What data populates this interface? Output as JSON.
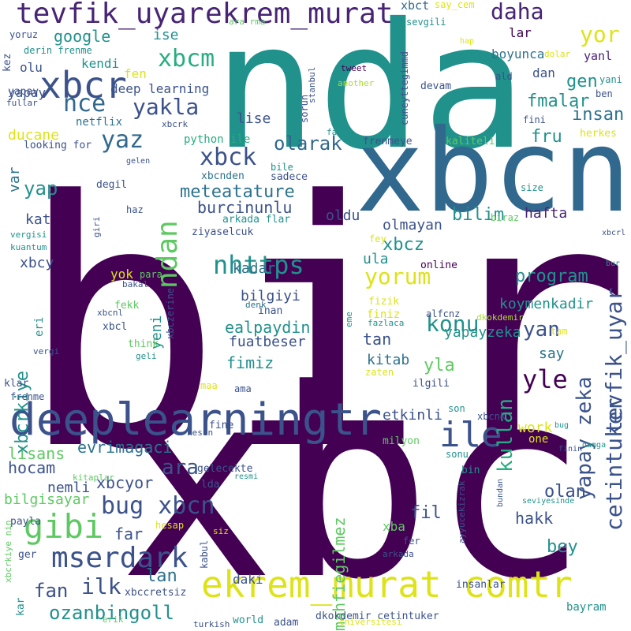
{
  "cloud": {
    "palette": {
      "dark_purple": "#440154",
      "purple": "#482475",
      "indigo": "#3b528b",
      "blue": "#2c728e",
      "teal": "#21918c",
      "green": "#27ad81",
      "light_green": "#5ec962",
      "lime": "#aadc32",
      "yellow": "#dde318"
    },
    "words": [
      {
        "text": "bir",
        "color": "#440154"
      },
      {
        "text": "xbc",
        "color": "#440154"
      },
      {
        "text": "nda",
        "color": "#21918c"
      },
      {
        "text": "xbcn",
        "color": "#31688e"
      },
      {
        "text": "deeplearningtr",
        "color": "#3b528b"
      },
      {
        "text": "ekrem_murat comtr",
        "color": "#dde318"
      },
      {
        "text": "tevfik_uyar",
        "color": "#482475"
      },
      {
        "text": "ekrem_murat",
        "color": "#482475"
      },
      {
        "text": "xbcr",
        "color": "#3b528b"
      },
      {
        "text": "ile",
        "color": "#3b528b"
      },
      {
        "text": "gibi",
        "color": "#5ec962"
      },
      {
        "text": "mserdark",
        "color": "#3b528b"
      },
      {
        "text": "bug xbcn",
        "color": "#3b528b"
      },
      {
        "text": "ndan",
        "color": "#5ec962"
      },
      {
        "text": "xbck",
        "color": "#3b528b"
      },
      {
        "text": "xbcm",
        "color": "#27ad81"
      },
      {
        "text": "yaz",
        "color": "#31688e"
      },
      {
        "text": "yakla",
        "color": "#3b528b"
      },
      {
        "text": "nce",
        "color": "#31688e"
      },
      {
        "text": "daha",
        "color": "#482475"
      },
      {
        "text": "yor",
        "color": "#dde318"
      },
      {
        "text": "nhttps",
        "color": "#21918c"
      },
      {
        "text": "yorum",
        "color": "#dde318"
      },
      {
        "text": "konu",
        "color": "#21918c"
      },
      {
        "text": "yle",
        "color": "#440154"
      },
      {
        "text": "olarak",
        "color": "#31688e"
      },
      {
        "text": "meteatature",
        "color": "#2c728e"
      },
      {
        "text": "burcinunlu",
        "color": "#3b528b"
      },
      {
        "text": "xbcz",
        "color": "#21918c"
      },
      {
        "text": "ozanbingoll",
        "color": "#21918c"
      },
      {
        "text": "ilk",
        "color": "#3b528b"
      },
      {
        "text": "fan",
        "color": "#3b528b"
      },
      {
        "text": "lan",
        "color": "#2c728e"
      },
      {
        "text": "ara",
        "color": "#3b528b"
      },
      {
        "text": "yap",
        "color": "#21918c"
      },
      {
        "text": "cetintuker",
        "color": "#3b528b"
      },
      {
        "text": "tevfik_uyar",
        "color": "#3b528b"
      },
      {
        "text": "kullan",
        "color": "#27ad81"
      },
      {
        "text": "yapay zeka",
        "color": "#3b528b"
      },
      {
        "text": "yan",
        "color": "#3b528b"
      },
      {
        "text": "bilim",
        "color": "#21918c"
      },
      {
        "text": "program",
        "color": "#21918c"
      },
      {
        "text": "insan",
        "color": "#2c728e"
      },
      {
        "text": "fmalar",
        "color": "#21918c"
      },
      {
        "text": "fru",
        "color": "#21918c"
      },
      {
        "text": "gen",
        "color": "#21918c"
      },
      {
        "text": "google",
        "color": "#21918c"
      },
      {
        "text": "bey",
        "color": "#21918c"
      },
      {
        "text": "hakk",
        "color": "#3b528b"
      },
      {
        "text": "olan",
        "color": "#3b528b"
      },
      {
        "text": "fil",
        "color": "#3b528b"
      },
      {
        "text": "far",
        "color": "#3b528b"
      },
      {
        "text": "xbcyor",
        "color": "#3b528b"
      },
      {
        "text": "evrimagaci",
        "color": "#2c728e"
      },
      {
        "text": "lisans",
        "color": "#5ec962"
      },
      {
        "text": "hocam",
        "color": "#3b528b"
      },
      {
        "text": "nemli",
        "color": "#3b528b"
      },
      {
        "text": "bilgisayar",
        "color": "#5ec962"
      },
      {
        "text": "mahfiegilmez",
        "color": "#5ec962"
      },
      {
        "text": "xbcrkiye",
        "color": "#21918c"
      },
      {
        "text": "yeni",
        "color": "#21918c"
      },
      {
        "text": "ealpaydin",
        "color": "#21918c"
      },
      {
        "text": "fuatbeser",
        "color": "#3b528b"
      },
      {
        "text": "fimiz",
        "color": "#21918c"
      },
      {
        "text": "tan",
        "color": "#3b528b"
      },
      {
        "text": "yla",
        "color": "#5ec962"
      },
      {
        "text": "kitab",
        "color": "#2c728e"
      },
      {
        "text": "etkinli",
        "color": "#3b528b"
      },
      {
        "text": "work",
        "color": "#dde318"
      },
      {
        "text": "say",
        "color": "#2c728e"
      },
      {
        "text": "koymenkadir",
        "color": "#21918c"
      },
      {
        "text": "yapayzeka",
        "color": "#21918c"
      },
      {
        "text": "bilgiyi",
        "color": "#3b528b"
      },
      {
        "text": "kadar",
        "color": "#2c728e"
      },
      {
        "text": "ula",
        "color": "#21918c"
      },
      {
        "text": "olmayan",
        "color": "#3b528b"
      },
      {
        "text": "oldu",
        "color": "#3b528b"
      },
      {
        "text": "hafta",
        "color": "#482475"
      },
      {
        "text": "kat",
        "color": "#3b528b"
      },
      {
        "text": "xbcy",
        "color": "#3b528b"
      },
      {
        "text": "var",
        "color": "#2c728e"
      },
      {
        "text": "ducane",
        "color": "#dde318"
      },
      {
        "text": "yapay",
        "color": "#3b528b"
      },
      {
        "text": "kendi",
        "color": "#21918c"
      },
      {
        "text": "olu",
        "color": "#3b528b"
      },
      {
        "text": "ise",
        "color": "#21918c"
      },
      {
        "text": "fen",
        "color": "#dde318"
      },
      {
        "text": "deep learning",
        "color": "#3b528b"
      },
      {
        "text": "lise",
        "color": "#3b528b"
      },
      {
        "text": "netflix",
        "color": "#2c728e"
      },
      {
        "text": "boyunca",
        "color": "#2c728e"
      },
      {
        "text": "dan",
        "color": "#3b528b"
      },
      {
        "text": "lar",
        "color": "#440154"
      },
      {
        "text": "yanl",
        "color": "#482475"
      },
      {
        "text": "xbct",
        "color": "#31688e"
      },
      {
        "text": "python ile",
        "color": "#27ad81"
      },
      {
        "text": "frenmeye",
        "color": "#3b528b"
      },
      {
        "text": "kaliteli",
        "color": "#5ec962"
      },
      {
        "text": "xbcnden",
        "color": "#2c728e"
      },
      {
        "text": "sadece",
        "color": "#3b528b"
      },
      {
        "text": "degil",
        "color": "#3b528b"
      },
      {
        "text": "haz",
        "color": "#3b528b"
      },
      {
        "text": "arkada flar",
        "color": "#21918c"
      },
      {
        "text": "ziyaselcuk",
        "color": "#3b528b"
      },
      {
        "text": "para",
        "color": "#5ec962"
      },
      {
        "text": "yok",
        "color": "#dde318"
      },
      {
        "text": "bakal",
        "color": "#3b528b"
      },
      {
        "text": "fekk",
        "color": "#5ec962"
      },
      {
        "text": "xbcnl",
        "color": "#3b528b"
      },
      {
        "text": "xbcl",
        "color": "#3b528b"
      },
      {
        "text": "think",
        "color": "#5ec962"
      },
      {
        "text": "geli",
        "color": "#21918c"
      },
      {
        "text": "xbczerine",
        "color": "#3b528b"
      },
      {
        "text": "inan",
        "color": "#3b528b"
      },
      {
        "text": "denk",
        "color": "#2c728e"
      },
      {
        "text": "finiz",
        "color": "#dde318"
      },
      {
        "text": "alfcnz",
        "color": "#3b528b"
      },
      {
        "text": "fazlaca",
        "color": "#21918c"
      },
      {
        "text": "eme",
        "color": "#21918c"
      },
      {
        "text": "dkokdemir",
        "color": "#aadc32"
      },
      {
        "text": "tam",
        "color": "#dde318"
      },
      {
        "text": "online",
        "color": "#440154"
      },
      {
        "text": "fizik",
        "color": "#dde318"
      },
      {
        "text": "fey",
        "color": "#dde318"
      },
      {
        "text": "zaten",
        "color": "#dde318"
      },
      {
        "text": "ilgili",
        "color": "#3b528b"
      },
      {
        "text": "son",
        "color": "#21918c"
      },
      {
        "text": "xbcnk",
        "color": "#3b528b"
      },
      {
        "text": "one",
        "color": "#dde318"
      },
      {
        "text": "milyon",
        "color": "#5ec962"
      },
      {
        "text": "sonu",
        "color": "#21918c"
      },
      {
        "text": "bin",
        "color": "#21918c"
      },
      {
        "text": "ayyucekizrak",
        "color": "#3b528b"
      },
      {
        "text": "bundan",
        "color": "#3b528b"
      },
      {
        "text": "fer",
        "color": "#3b528b"
      },
      {
        "text": "arkada",
        "color": "#3b528b"
      },
      {
        "text": "xba",
        "color": "#5ec962"
      },
      {
        "text": "insanlar",
        "color": "#3b528b"
      },
      {
        "text": "dkokdemir cetintuker",
        "color": "#3b528b"
      },
      {
        "text": "bayram",
        "color": "#21918c"
      },
      {
        "text": "xbccretsiz",
        "color": "#3b528b"
      },
      {
        "text": "daki",
        "color": "#3b528b"
      },
      {
        "text": "world",
        "color": "#21918c"
      },
      {
        "text": "adam",
        "color": "#3b528b"
      },
      {
        "text": "cniversitesi",
        "color": "#dde318"
      },
      {
        "text": "turkish",
        "color": "#3b528b"
      },
      {
        "text": "erik",
        "color": "#5ec962"
      },
      {
        "text": "xbcrkiye nin",
        "color": "#5ec962"
      },
      {
        "text": "kar",
        "color": "#21918c"
      },
      {
        "text": "ger",
        "color": "#3b528b"
      },
      {
        "text": "payla",
        "color": "#3b528b"
      },
      {
        "text": "hesap",
        "color": "#dde318"
      },
      {
        "text": "siz",
        "color": "#dde318"
      },
      {
        "text": "kabul",
        "color": "#3b528b"
      },
      {
        "text": "kitaplar",
        "color": "#5ec962"
      },
      {
        "text": "lda",
        "color": "#3b528b"
      },
      {
        "text": "gelecekte",
        "color": "#3b528b"
      },
      {
        "text": "resmi",
        "color": "#21918c"
      },
      {
        "text": "fine",
        "color": "#3b528b"
      },
      {
        "text": "kesin",
        "color": "#3b528b"
      },
      {
        "text": "maa",
        "color": "#dde318"
      },
      {
        "text": "ama",
        "color": "#3b528b"
      },
      {
        "text": "klar",
        "color": "#3b528b"
      },
      {
        "text": "frenme",
        "color": "#3b528b"
      },
      {
        "text": "vergi",
        "color": "#3b528b"
      },
      {
        "text": "eri",
        "color": "#21918c"
      },
      {
        "text": "kuantum",
        "color": "#21918c"
      },
      {
        "text": "vergisi",
        "color": "#21918c"
      },
      {
        "text": "giri",
        "color": "#3b528b"
      },
      {
        "text": "biraz",
        "color": "#5ec962"
      },
      {
        "text": "size",
        "color": "#21918c"
      },
      {
        "text": "gelen",
        "color": "#3b528b"
      },
      {
        "text": "bile",
        "color": "#21918c"
      },
      {
        "text": "looking for",
        "color": "#3b528b"
      },
      {
        "text": "xbcrk",
        "color": "#3b528b"
      },
      {
        "text": "yapay",
        "color": "#3b528b"
      },
      {
        "text": "derin frenme",
        "color": "#21918c"
      },
      {
        "text": "yoruz",
        "color": "#3b528b"
      },
      {
        "text": "kez",
        "color": "#3b528b"
      },
      {
        "text": "fullar",
        "color": "#3b528b"
      },
      {
        "text": "ara rma",
        "color": "#5ec962"
      },
      {
        "text": "sevgili",
        "color": "#21918c"
      },
      {
        "text": "say_cem",
        "color": "#dde318"
      },
      {
        "text": "hap",
        "color": "#dde318"
      },
      {
        "text": "dolar",
        "color": "#dde318"
      },
      {
        "text": "sorun",
        "color": "#3b528b"
      },
      {
        "text": "cuneyttegimmd",
        "color": "#3b528b"
      },
      {
        "text": "devam",
        "color": "#3b528b"
      },
      {
        "text": "stanbul",
        "color": "#3b528b"
      },
      {
        "text": "tweet",
        "color": "#440154"
      },
      {
        "text": "another",
        "color": "#aadc32"
      },
      {
        "text": "fam",
        "color": "#21918c"
      },
      {
        "text": "ald",
        "color": "#3b528b"
      },
      {
        "text": "fini",
        "color": "#3b528b"
      },
      {
        "text": "ben",
        "color": "#3b528b"
      },
      {
        "text": "yani",
        "color": "#21918c"
      },
      {
        "text": "herkes",
        "color": "#dde318"
      },
      {
        "text": "xbcrl",
        "color": "#3b528b"
      },
      {
        "text": "bur",
        "color": "#21918c"
      },
      {
        "text": "bug",
        "color": "#21918c"
      },
      {
        "text": "damga",
        "color": "#21918c"
      },
      {
        "text": "finin",
        "color": "#3b528b"
      },
      {
        "text": "seviyesinde",
        "color": "#21918c"
      }
    ]
  }
}
